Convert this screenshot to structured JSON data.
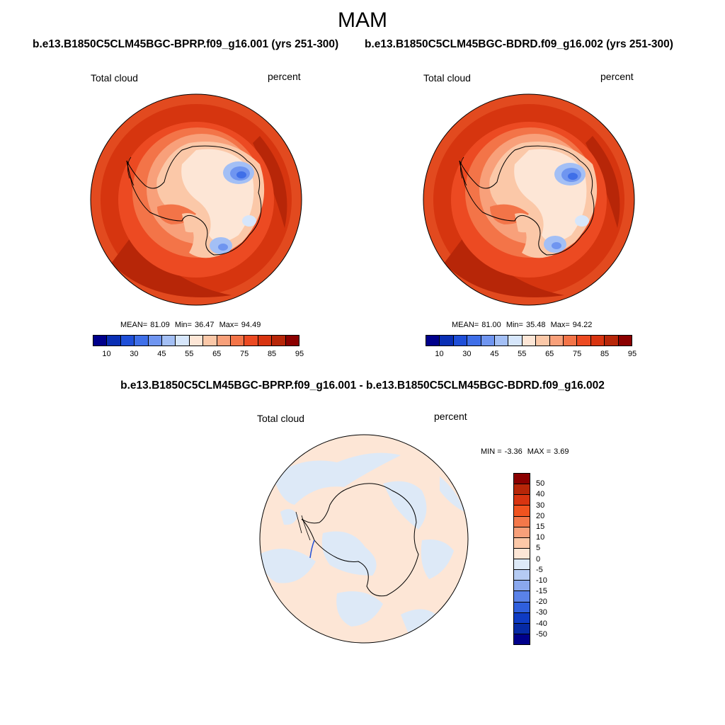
{
  "page": {
    "season": "MAM",
    "case1_title": "b.e13.B1850C5CLM45BGC-BPRP.f09_g16.001 (yrs 251-300)",
    "case2_title": "b.e13.B1850C5CLM45BGC-BDRD.f09_g16.002 (yrs 251-300)",
    "diff_title": "b.e13.B1850C5CLM45BGC-BPRP.f09_g16.001 - b.e13.B1850C5CLM45BGC-BDRD.f09_g16.002"
  },
  "panels": {
    "case1": {
      "variable": "Total cloud",
      "units": "percent",
      "mean_label": "MEAN=",
      "mean": "81.09",
      "min_label": "Min=",
      "min": "36.47",
      "max_label": "Max=",
      "max": "94.49"
    },
    "case2": {
      "variable": "Total cloud",
      "units": "percent",
      "mean_label": "MEAN=",
      "mean": "81.00",
      "min_label": "Min=",
      "min": "35.48",
      "max_label": "Max=",
      "max": "94.22"
    },
    "diff": {
      "variable": "Total cloud",
      "units": "percent",
      "min_label": "MIN =",
      "min": "-3.36",
      "max_label": "MAX =",
      "max": "3.69"
    }
  },
  "colorbar_main": {
    "ticks": [
      "10",
      "30",
      "45",
      "55",
      "65",
      "75",
      "85",
      "95"
    ],
    "colors": [
      "#00008b",
      "#0a2fb4",
      "#1f4fd8",
      "#3f6fe8",
      "#6f95f0",
      "#a3bff5",
      "#d6e6fb",
      "#fde6d6",
      "#fbc8a8",
      "#f8a07a",
      "#f37448",
      "#ec4a22",
      "#d83410",
      "#b72608",
      "#8b0000"
    ]
  },
  "colorbar_diff": {
    "ticks": [
      "50",
      "40",
      "30",
      "20",
      "15",
      "10",
      "5",
      "0",
      "-5",
      "-10",
      "-15",
      "-20",
      "-30",
      "-40",
      "-50"
    ],
    "colors": [
      "#8b0000",
      "#b72608",
      "#d83410",
      "#f0531f",
      "#f4784a",
      "#f8a07a",
      "#fbc8a8",
      "#fde6d6",
      "#dde9f7",
      "#b5cbf3",
      "#8aa8ee",
      "#5a82e8",
      "#2f5fdd",
      "#0e3bc4",
      "#062aa5",
      "#00008b"
    ]
  }
}
